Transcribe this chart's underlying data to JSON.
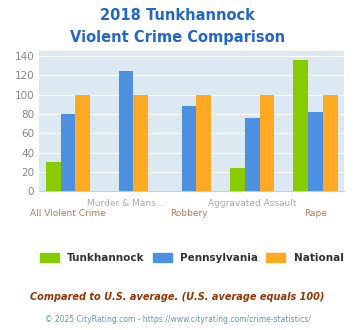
{
  "title_line1": "2018 Tunkhannock",
  "title_line2": "Violent Crime Comparison",
  "categories_top": [
    "Murder & Mans...",
    "Aggravated Assault"
  ],
  "categories_bottom": [
    "All Violent Crime",
    "Robbery",
    "Rape"
  ],
  "tunkhannock": [
    30,
    0,
    0,
    24,
    136
  ],
  "pennsylvania": [
    80,
    124,
    88,
    76,
    82
  ],
  "national": [
    100,
    100,
    100,
    100,
    100
  ],
  "color_tunkhannock": "#88cc00",
  "color_pennsylvania": "#4d90e0",
  "color_national": "#ffaa22",
  "title_color": "#2266cc",
  "axis_bg_color": "#dce9f2",
  "ylabel_color": "#888888",
  "xlabel_top_color": "#aaaaaa",
  "xlabel_bot_color": "#bb7755",
  "ylim": [
    0,
    145
  ],
  "yticks": [
    0,
    20,
    40,
    60,
    80,
    100,
    120,
    140
  ],
  "footer_text": "Compared to U.S. average. (U.S. average equals 100)",
  "credit_text": "© 2025 CityRating.com - https://www.cityrating.com/crime-statistics/",
  "footer_color": "#993300",
  "credit_color": "#6699bb",
  "legend_labels": [
    "Tunkhannock",
    "Pennsylvania",
    "National"
  ],
  "legend_text_color": "#333333"
}
